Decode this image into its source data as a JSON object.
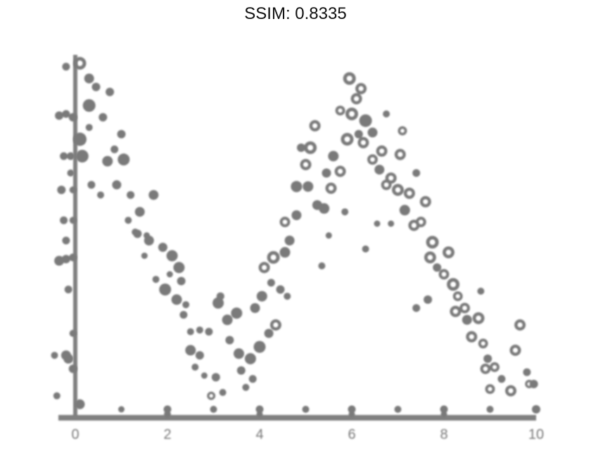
{
  "title": "SSIM: 0.8335",
  "colors": {
    "mark": "#7a7a7a",
    "axis": "#808080",
    "background": "#ffffff"
  },
  "chart_data": {
    "type": "scatter",
    "title": "SSIM: 0.8335",
    "xlabel": "",
    "ylabel": "",
    "xlim": [
      0,
      10
    ],
    "ylim": [
      -0.1,
      2.05
    ],
    "grid": false,
    "legend": "none",
    "x_ticks": [
      "0",
      "2",
      "4",
      "6",
      "8",
      "10"
    ],
    "points": [
      [
        0.1,
        2.0,
        0.9,
        1
      ],
      [
        0.3,
        1.91,
        0.7,
        0
      ],
      [
        0.45,
        1.86,
        0.6,
        0
      ],
      [
        0.3,
        1.75,
        0.9,
        0
      ],
      [
        0.1,
        1.55,
        0.95,
        0
      ],
      [
        0.15,
        1.45,
        0.9,
        0
      ],
      [
        0.3,
        1.62,
        0.5,
        0
      ],
      [
        0.6,
        1.68,
        0.6,
        0
      ],
      [
        0.75,
        1.83,
        0.6,
        0
      ],
      [
        0.7,
        1.42,
        0.75,
        0
      ],
      [
        0.85,
        1.49,
        0.55,
        0
      ],
      [
        1.05,
        1.43,
        0.85,
        0
      ],
      [
        0.9,
        1.28,
        0.65,
        0
      ],
      [
        1.2,
        1.22,
        0.55,
        0
      ],
      [
        1.4,
        1.12,
        0.7,
        0
      ],
      [
        1.15,
        1.07,
        0.5,
        0
      ],
      [
        1.35,
        0.99,
        0.6,
        0
      ],
      [
        1.5,
        0.86,
        0.45,
        0
      ],
      [
        1.6,
        0.95,
        0.7,
        0
      ],
      [
        1.7,
        1.22,
        0.7,
        0
      ],
      [
        1.9,
        0.91,
        0.65,
        0
      ],
      [
        2.1,
        0.86,
        0.8,
        0
      ],
      [
        2.25,
        0.79,
        0.8,
        0
      ],
      [
        2.05,
        0.75,
        0.45,
        0
      ],
      [
        2.3,
        0.71,
        0.6,
        0
      ],
      [
        1.95,
        0.66,
        0.85,
        0
      ],
      [
        2.2,
        0.6,
        0.75,
        0
      ],
      [
        2.35,
        0.51,
        0.55,
        0
      ],
      [
        2.5,
        0.41,
        0.5,
        0
      ],
      [
        2.5,
        0.3,
        0.75,
        0
      ],
      [
        2.7,
        0.27,
        0.6,
        0
      ],
      [
        2.6,
        0.2,
        0.5,
        0
      ],
      [
        2.8,
        0.15,
        0.45,
        0
      ],
      [
        2.9,
        0.41,
        0.55,
        0
      ],
      [
        3.1,
        0.58,
        0.8,
        0
      ],
      [
        3.05,
        0.14,
        0.6,
        0
      ],
      [
        2.95,
        0.03,
        0.6,
        1
      ],
      [
        3.2,
        0.05,
        0.5,
        0
      ],
      [
        3.3,
        0.48,
        0.75,
        0
      ],
      [
        3.5,
        0.52,
        0.8,
        0
      ],
      [
        3.35,
        0.36,
        0.6,
        0
      ],
      [
        3.55,
        0.28,
        0.75,
        0
      ],
      [
        3.6,
        0.18,
        0.6,
        0
      ],
      [
        3.8,
        0.25,
        0.8,
        0
      ],
      [
        3.85,
        0.13,
        0.55,
        0
      ],
      [
        3.7,
        0.08,
        0.5,
        0
      ],
      [
        4.0,
        0.32,
        0.85,
        0
      ],
      [
        4.2,
        0.4,
        0.65,
        0
      ],
      [
        3.9,
        0.55,
        0.7,
        0
      ],
      [
        4.05,
        0.62,
        0.75,
        0
      ],
      [
        4.25,
        0.7,
        0.55,
        0
      ],
      [
        4.35,
        0.45,
        0.8,
        1
      ],
      [
        4.1,
        0.79,
        0.8,
        1
      ],
      [
        4.3,
        0.85,
        0.9,
        1
      ],
      [
        4.45,
        0.66,
        0.6,
        0
      ],
      [
        4.55,
        0.88,
        0.75,
        0
      ],
      [
        4.65,
        0.95,
        0.7,
        0
      ],
      [
        4.55,
        1.06,
        0.75,
        1
      ],
      [
        4.8,
        1.1,
        0.7,
        0
      ],
      [
        4.8,
        1.27,
        0.8,
        0
      ],
      [
        5.05,
        1.27,
        0.75,
        0
      ],
      [
        5.0,
        1.4,
        0.8,
        1
      ],
      [
        4.9,
        1.5,
        0.6,
        0
      ],
      [
        5.1,
        1.5,
        0.9,
        1
      ],
      [
        5.2,
        1.63,
        0.8,
        1
      ],
      [
        5.25,
        1.16,
        0.7,
        0
      ],
      [
        5.4,
        1.14,
        0.75,
        0
      ],
      [
        5.55,
        1.26,
        0.8,
        1
      ],
      [
        5.45,
        1.35,
        0.65,
        0
      ],
      [
        5.6,
        1.45,
        0.75,
        0
      ],
      [
        5.75,
        1.36,
        0.8,
        1
      ],
      [
        5.9,
        1.55,
        0.9,
        1
      ],
      [
        6.0,
        1.7,
        0.9,
        1
      ],
      [
        5.75,
        1.72,
        0.7,
        1
      ],
      [
        6.1,
        1.79,
        0.8,
        1
      ],
      [
        6.2,
        1.85,
        0.8,
        1
      ],
      [
        5.95,
        1.91,
        0.9,
        1
      ],
      [
        6.3,
        1.66,
        0.9,
        0
      ],
      [
        6.45,
        1.59,
        0.7,
        0
      ],
      [
        6.15,
        1.58,
        0.6,
        0
      ],
      [
        6.25,
        1.53,
        0.8,
        1
      ],
      [
        6.45,
        1.43,
        0.75,
        1
      ],
      [
        6.65,
        1.48,
        0.8,
        1
      ],
      [
        6.6,
        1.37,
        0.7,
        0
      ],
      [
        6.75,
        1.28,
        0.75,
        1
      ],
      [
        6.85,
        1.32,
        0.8,
        1
      ],
      [
        7.05,
        1.46,
        0.8,
        1
      ],
      [
        7.0,
        1.25,
        0.85,
        1
      ],
      [
        7.15,
        1.13,
        0.75,
        0
      ],
      [
        7.25,
        1.23,
        0.8,
        1
      ],
      [
        7.35,
        1.04,
        0.8,
        1
      ],
      [
        7.5,
        1.06,
        0.75,
        1
      ],
      [
        7.6,
        1.18,
        0.8,
        1
      ],
      [
        7.75,
        0.94,
        0.9,
        1
      ],
      [
        7.7,
        0.85,
        0.85,
        1
      ],
      [
        7.85,
        0.79,
        0.6,
        0
      ],
      [
        8.0,
        0.75,
        0.75,
        1
      ],
      [
        8.1,
        0.88,
        0.85,
        1
      ],
      [
        8.2,
        0.69,
        0.9,
        1
      ],
      [
        8.3,
        0.62,
        0.7,
        1
      ],
      [
        8.25,
        0.53,
        0.8,
        1
      ],
      [
        8.45,
        0.55,
        0.75,
        1
      ],
      [
        8.5,
        0.48,
        0.7,
        0
      ],
      [
        8.6,
        0.38,
        0.8,
        1
      ],
      [
        8.75,
        0.49,
        0.85,
        1
      ],
      [
        8.85,
        0.34,
        0.7,
        1
      ],
      [
        8.95,
        0.25,
        0.6,
        0
      ],
      [
        8.9,
        0.19,
        0.75,
        1
      ],
      [
        9.1,
        0.2,
        0.7,
        1
      ],
      [
        9.0,
        0.07,
        0.7,
        1
      ],
      [
        9.25,
        0.13,
        0.55,
        0
      ],
      [
        9.45,
        0.06,
        0.8,
        1
      ],
      [
        9.55,
        0.3,
        0.8,
        1
      ],
      [
        9.65,
        0.45,
        0.8,
        1
      ],
      [
        9.8,
        0.17,
        0.55,
        0
      ],
      [
        9.95,
        0.1,
        0.6,
        0
      ],
      [
        9.85,
        0.1,
        0.6,
        1
      ],
      [
        7.4,
        0.55,
        0.55,
        0
      ],
      [
        7.65,
        0.6,
        0.6,
        0
      ],
      [
        8.8,
        0.65,
        0.5,
        0
      ],
      [
        6.55,
        1.05,
        0.45,
        0
      ],
      [
        6.85,
        1.05,
        0.45,
        0
      ],
      [
        5.5,
        0.98,
        0.45,
        0
      ],
      [
        5.85,
        1.12,
        0.5,
        0
      ],
      [
        6.75,
        1.7,
        0.5,
        0
      ],
      [
        7.1,
        1.6,
        0.65,
        1
      ],
      [
        7.4,
        1.35,
        0.55,
        0
      ],
      [
        6.3,
        0.9,
        0.5,
        0
      ],
      [
        5.35,
        0.8,
        0.5,
        0
      ],
      [
        0.55,
        1.22,
        0.5,
        0
      ],
      [
        1.0,
        1.58,
        0.6,
        0
      ],
      [
        1.3,
        1.0,
        0.5,
        0
      ],
      [
        1.75,
        0.72,
        0.5,
        0
      ],
      [
        2.4,
        0.57,
        0.5,
        0
      ],
      [
        0.35,
        1.28,
        0.55,
        0
      ],
      [
        2.7,
        0.42,
        0.5,
        0
      ],
      [
        3.15,
        0.62,
        0.55,
        0
      ],
      [
        4.6,
        0.62,
        0.5,
        0
      ],
      [
        1.55,
        0.98,
        0.45,
        0
      ]
    ],
    "y_edge_marks": [
      [
        -0.4,
        0.03,
        0.5
      ],
      [
        -0.15,
        0.25,
        0.7
      ],
      [
        -0.2,
        0.27,
        0.7
      ],
      [
        -0.05,
        0.19,
        0.6
      ],
      [
        -0.15,
        0.66,
        0.55
      ],
      [
        -0.2,
        0.84,
        0.6
      ],
      [
        -0.05,
        0.85,
        0.55
      ],
      [
        -0.2,
        0.95,
        0.55
      ],
      [
        -0.35,
        0.83,
        0.7
      ],
      [
        -0.25,
        1.07,
        0.55
      ],
      [
        -0.05,
        1.07,
        0.5
      ],
      [
        -0.3,
        1.25,
        0.6
      ],
      [
        -0.05,
        1.25,
        0.5
      ],
      [
        -0.25,
        1.45,
        0.55
      ],
      [
        -0.1,
        1.45,
        0.55
      ],
      [
        -0.35,
        1.69,
        0.6
      ],
      [
        -0.2,
        1.7,
        0.55
      ],
      [
        -0.05,
        1.68,
        0.6
      ],
      [
        -0.2,
        1.98,
        0.55
      ],
      [
        -0.45,
        0.27,
        0.5
      ],
      [
        -0.05,
        0.4,
        0.5
      ],
      [
        -0.1,
        1.35,
        0.5
      ]
    ],
    "x_edge_marks": [
      [
        0.1,
        -0.02,
        0.7
      ],
      [
        1.0,
        -0.05,
        0.45
      ],
      [
        2.0,
        -0.05,
        0.55
      ],
      [
        3.0,
        -0.05,
        0.5
      ],
      [
        4.0,
        -0.05,
        0.55
      ],
      [
        5.0,
        -0.05,
        0.5
      ],
      [
        6.0,
        -0.05,
        0.55
      ],
      [
        7.0,
        -0.05,
        0.5
      ],
      [
        8.0,
        -0.05,
        0.55
      ],
      [
        9.0,
        -0.05,
        0.5
      ],
      [
        10.0,
        -0.05,
        0.6
      ],
      [
        2.0,
        -0.08,
        0.5
      ],
      [
        4.0,
        -0.08,
        0.45
      ],
      [
        6.0,
        -0.08,
        0.45
      ],
      [
        8.0,
        -0.08,
        0.45
      ]
    ]
  }
}
